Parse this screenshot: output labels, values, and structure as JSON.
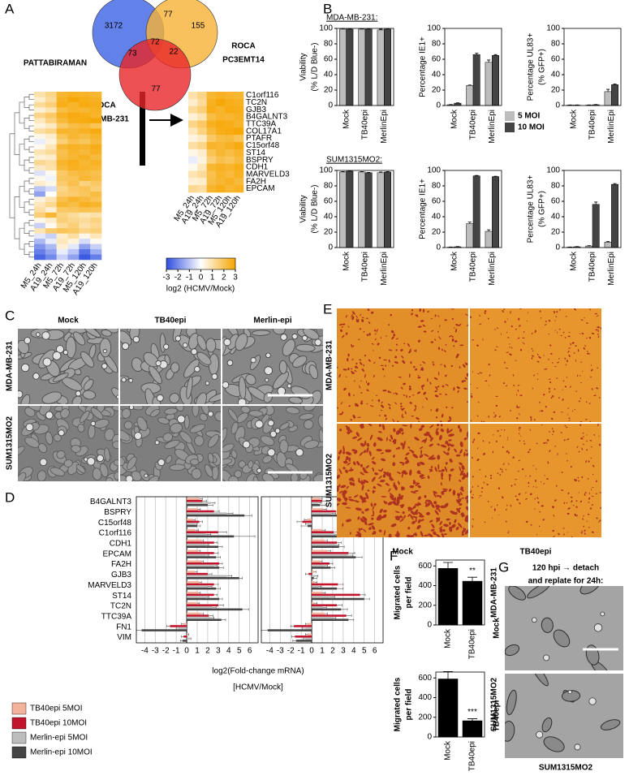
{
  "panel_labels": [
    "A",
    "B",
    "C",
    "D",
    "E",
    "F",
    "G"
  ],
  "venn": {
    "sets": [
      {
        "name": "PATTABIRAMAN",
        "color": "#3b62e3"
      },
      {
        "name": [
          "ROCA",
          "PC3EMT14"
        ],
        "color": "#f7b236"
      },
      {
        "name": [
          "ROCA",
          "MDA-MB-231"
        ],
        "color": "#e92628"
      }
    ],
    "counts": [
      3172,
      77,
      155,
      72,
      73,
      22,
      77
    ]
  },
  "heatmap": {
    "columns": [
      "M5_24h",
      "A19_24h",
      "M5_72h",
      "A19_72h",
      "M5_120h",
      "A19_120h"
    ],
    "genes": [
      "C1orf116",
      "TC2N",
      "GJB3",
      "B4GALNT3",
      "TTC39A",
      "COL17A1",
      "PTAFR",
      "C15orf48",
      "ST14",
      "BSPRY",
      "CDH1",
      "MARVELD3",
      "FA2H",
      "EPCAM"
    ],
    "values": [
      [
        1.0,
        1.4,
        2.4,
        2.6,
        2.5,
        2.4
      ],
      [
        0.6,
        1.2,
        2.6,
        2.9,
        2.7,
        2.6
      ],
      [
        1.2,
        1.6,
        2.7,
        2.5,
        2.8,
        2.7
      ],
      [
        0.5,
        0.9,
        2.2,
        2.5,
        2.4,
        2.6
      ],
      [
        1.4,
        1.8,
        2.6,
        2.8,
        2.7,
        2.5
      ],
      [
        0.8,
        1.5,
        2.3,
        2.7,
        2.8,
        2.9
      ],
      [
        0.4,
        0.7,
        1.8,
        2.2,
        2.3,
        2.0
      ],
      [
        1.1,
        1.4,
        2.5,
        2.4,
        2.6,
        2.8
      ],
      [
        0.3,
        0.6,
        2.0,
        2.4,
        2.2,
        2.5
      ],
      [
        -0.3,
        0.4,
        1.6,
        2.1,
        1.9,
        2.3
      ],
      [
        0.2,
        0.8,
        2.4,
        2.6,
        2.5,
        2.7
      ],
      [
        0.9,
        1.2,
        2.1,
        2.5,
        2.3,
        2.6
      ],
      [
        0.5,
        0.6,
        2.2,
        2.4,
        2.6,
        2.3
      ],
      [
        1.3,
        1.1,
        2.5,
        2.7,
        2.4,
        2.6
      ],
      [
        0.7,
        1.0,
        2.3,
        2.6,
        2.5,
        2.4
      ],
      [
        -0.5,
        0.2,
        1.8,
        2.2,
        2.3,
        2.1
      ],
      [
        0.2,
        -0.2,
        1.9,
        2.0,
        2.4,
        2.2
      ],
      [
        0.6,
        0.3,
        1.7,
        2.1,
        1.5,
        1.8
      ],
      [
        -1.0,
        -0.6,
        1.4,
        1.8,
        2.0,
        1.6
      ],
      [
        -1.6,
        0.0,
        1.6,
        1.7,
        1.9,
        2.2
      ],
      [
        0.4,
        0.9,
        2.1,
        2.5,
        2.3,
        2.0
      ],
      [
        0.8,
        1.3,
        2.4,
        2.2,
        2.6,
        2.5
      ],
      [
        1.1,
        0.5,
        1.8,
        1.9,
        2.1,
        2.0
      ],
      [
        1.6,
        2.4,
        1.5,
        1.2,
        0.9,
        1.0
      ],
      [
        0.3,
        0.6,
        1.6,
        1.4,
        1.2,
        1.5
      ],
      [
        -0.8,
        0.2,
        1.2,
        1.6,
        1.0,
        1.3
      ],
      [
        0.9,
        1.7,
        2.0,
        1.8,
        1.4,
        1.6
      ],
      [
        -0.4,
        -0.8,
        0.6,
        1.1,
        0.3,
        0.8
      ],
      [
        -1.2,
        -0.3,
        0.8,
        0.4,
        -0.6,
        0.2
      ],
      [
        -1.8,
        -1.2,
        0.5,
        -0.4,
        -1.6,
        -0.8
      ],
      [
        -2.2,
        -1.6,
        -0.3,
        -1.0,
        -2.4,
        -1.4
      ],
      [
        -2.6,
        -2.0,
        -0.8,
        -1.6,
        -2.8,
        -2.2
      ]
    ],
    "colorbar": {
      "lim": [
        -3,
        3
      ],
      "ticks": [
        -3,
        -2,
        -1,
        0,
        1,
        2,
        3
      ],
      "label": "log2 (HCMV/Mock)",
      "colors": [
        "#2f4fe0",
        "#ffffff",
        "#f6a500"
      ]
    }
  },
  "panel_b": {
    "row_labels": [
      "MDA-MB-231:",
      "SUM1315MO2:"
    ]
  },
  "chart_data": [
    {
      "type": "bar",
      "ylabel": [
        "Viability",
        "(% L/D Blue-)"
      ],
      "categories": [
        "Mock",
        "TB40epi",
        "MerlinEpi"
      ],
      "ylim": [
        0,
        100
      ],
      "yticks": [
        0,
        20,
        40,
        60,
        80,
        100
      ],
      "series": [
        {
          "name": "5 MOI",
          "color": "#bdbdbd",
          "values": [
            99,
            99,
            98
          ],
          "errors": [
            1,
            0.5,
            1
          ]
        },
        {
          "name": "10 MOI",
          "color": "#444444",
          "values": [
            99,
            99,
            99
          ],
          "errors": [
            0.5,
            0.5,
            0.5
          ]
        }
      ]
    },
    {
      "type": "bar",
      "ylabel": [
        "Percentage IE1+"
      ],
      "categories": [
        "Mock",
        "TB40epi",
        "MerlinEpi"
      ],
      "ylim": [
        0,
        100
      ],
      "yticks": [
        0,
        20,
        40,
        60,
        80,
        100
      ],
      "series": [
        {
          "name": "5 MOI",
          "color": "#bdbdbd",
          "values": [
            1,
            26,
            56
          ],
          "errors": [
            0.3,
            0.5,
            3
          ]
        },
        {
          "name": "10 MOI",
          "color": "#444444",
          "values": [
            3,
            66,
            65
          ],
          "errors": [
            0.5,
            2,
            1
          ]
        }
      ]
    },
    {
      "type": "bar",
      "ylabel": [
        "Percentage UL83+",
        "(% GFP+)"
      ],
      "categories": [
        "Mock",
        "TB40epi",
        "MerlinEpi"
      ],
      "ylim": [
        0,
        100
      ],
      "yticks": [
        0,
        20,
        40,
        60,
        80,
        100
      ],
      "series": [
        {
          "name": "5 MOI",
          "color": "#bdbdbd",
          "values": [
            0.5,
            0.5,
            18
          ],
          "errors": [
            0.2,
            0.2,
            3
          ]
        },
        {
          "name": "10 MOI",
          "color": "#444444",
          "values": [
            0.5,
            1,
            27
          ],
          "errors": [
            0.2,
            0.3,
            1
          ]
        }
      ]
    },
    {
      "type": "bar",
      "ylabel": [
        "Viability",
        "(% L/D Blue-)"
      ],
      "categories": [
        "Mock",
        "TB40epi",
        "MerlinEpi"
      ],
      "ylim": [
        0,
        100
      ],
      "yticks": [
        0,
        20,
        40,
        60,
        80,
        100
      ],
      "series": [
        {
          "name": "5 MOI",
          "color": "#bdbdbd",
          "values": [
            98,
            98,
            97
          ],
          "errors": [
            0.5,
            0.5,
            1
          ]
        },
        {
          "name": "10 MOI",
          "color": "#444444",
          "values": [
            99,
            97,
            98
          ],
          "errors": [
            0.5,
            0.5,
            0.5
          ]
        }
      ]
    },
    {
      "type": "bar",
      "ylabel": [
        "Percentage IE1+"
      ],
      "categories": [
        "Mock",
        "TB40epi",
        "MerlinEpi"
      ],
      "ylim": [
        0,
        100
      ],
      "yticks": [
        0,
        20,
        40,
        60,
        80,
        100
      ],
      "series": [
        {
          "name": "5 MOI",
          "color": "#bdbdbd",
          "values": [
            0.5,
            31,
            21
          ],
          "errors": [
            0.2,
            2,
            2
          ]
        },
        {
          "name": "10 MOI",
          "color": "#444444",
          "values": [
            1,
            93,
            92
          ],
          "errors": [
            0.3,
            0.5,
            0.5
          ]
        }
      ]
    },
    {
      "type": "bar",
      "ylabel": [
        "Percentage UL83+",
        "(% GFP+)"
      ],
      "categories": [
        "Mock",
        "TB40epi",
        "MerlinEpi"
      ],
      "ylim": [
        0,
        100
      ],
      "yticks": [
        0,
        20,
        40,
        60,
        80,
        100
      ],
      "series": [
        {
          "name": "5 MOI",
          "color": "#bdbdbd",
          "values": [
            0.5,
            2,
            7
          ],
          "errors": [
            0.2,
            0.5,
            1
          ]
        },
        {
          "name": "10 MOI",
          "color": "#444444",
          "values": [
            1,
            56,
            82
          ],
          "errors": [
            0.3,
            3,
            1
          ]
        }
      ]
    },
    {
      "type": "bar",
      "orientation": "horizontal",
      "grid": true,
      "xlim": [
        -4.8,
        6.8
      ],
      "xticks": [
        -4,
        -3,
        -2,
        -1,
        0,
        1,
        2,
        3,
        4,
        5,
        6
      ],
      "xlabel": [
        "log2(Fold-change mRNA)",
        "[HCMV/Mock]"
      ],
      "categories": [
        "B4GALNT3",
        "BSPRY",
        "C15orf48",
        "C1orf116",
        "CDH1",
        "EPCAM",
        "FA2H",
        "GJB3",
        "MARVELD3",
        "ST14",
        "TC2N",
        "TTC39A",
        "FN1",
        "VIM"
      ],
      "series": [
        {
          "name": "TB40epi 5MOI",
          "color": "#f2b29c",
          "values": [
            1.2,
            1.0,
            0.6,
            0.8,
            1.4,
            1.1,
            1.4,
            0.8,
            1.2,
            1.1,
            1.0,
            1.3,
            -0.3,
            0.1
          ],
          "errors": [
            0.3,
            0.3,
            0.2,
            0.3,
            0.2,
            0.2,
            0.2,
            0.2,
            0.2,
            0.2,
            0.2,
            0.3,
            0.2,
            0.1
          ]
        },
        {
          "name": "TB40epi 10MOI",
          "color": "#c2142c",
          "values": [
            1.5,
            2.6,
            1.2,
            3.0,
            2.6,
            2.6,
            3.1,
            2.0,
            2.6,
            2.6,
            3.0,
            2.1,
            -1.6,
            -0.3
          ],
          "errors": [
            0.4,
            0.5,
            0.3,
            0.8,
            0.3,
            0.4,
            0.3,
            0.4,
            0.4,
            0.3,
            0.5,
            0.4,
            0.3,
            0.2
          ]
        },
        {
          "name": "Merlin-epi 5MOI",
          "color": "#bdbdbd",
          "values": [
            2.3,
            3.8,
            0.8,
            1.8,
            1.8,
            1.8,
            2.6,
            3.8,
            2.0,
            1.8,
            2.4,
            2.2,
            -0.8,
            0.3
          ],
          "errors": [
            0.4,
            0.6,
            0.2,
            0.5,
            0.3,
            0.3,
            0.3,
            0.5,
            0.4,
            0.3,
            0.4,
            0.4,
            0.2,
            0.1
          ]
        },
        {
          "name": "Merlin-epi 10MOI",
          "color": "#444444",
          "values": [
            2.0,
            5.5,
            1.0,
            4.5,
            3.0,
            2.8,
            3.1,
            5.0,
            2.8,
            3.1,
            5.3,
            3.3,
            -4.3,
            -0.4
          ],
          "errors": [
            0.5,
            0.7,
            0.3,
            2.0,
            0.4,
            0.4,
            0.4,
            0.3,
            0.4,
            0.3,
            0.6,
            0.4,
            0.5,
            0.2
          ]
        }
      ]
    },
    {
      "type": "bar",
      "orientation": "horizontal",
      "grid": true,
      "xlim": [
        -4.8,
        6.8
      ],
      "xticks": [
        -4,
        -3,
        -2,
        -1,
        0,
        1,
        2,
        3,
        4,
        5,
        6
      ],
      "series": [
        {
          "color": "#f2b29c",
          "values": [
            0.8,
            1.0,
            -0.4,
            1.0,
            1.2,
            1.5,
            0.8,
            0.2,
            0.3,
            1.0,
            0.2,
            1.2,
            -0.4,
            -0.4
          ],
          "errors": [
            0.2,
            0.4,
            0.3,
            0.3,
            0.3,
            0.3,
            0.2,
            0.2,
            0.2,
            0.3,
            0.3,
            0.3,
            0.2,
            0.2
          ]
        },
        {
          "color": "#c2142c",
          "values": [
            1.0,
            2.3,
            -0.9,
            2.1,
            2.4,
            3.5,
            1.7,
            -0.3,
            2.5,
            4.6,
            2.4,
            3.3,
            -1.7,
            -1.6
          ],
          "errors": [
            0.4,
            0.8,
            0.5,
            0.5,
            0.4,
            0.6,
            0.3,
            0.3,
            0.5,
            0.5,
            0.5,
            0.5,
            0.3,
            0.3
          ]
        },
        {
          "color": "#bdbdbd",
          "values": [
            0.6,
            1.8,
            -0.2,
            2.3,
            2.2,
            3.4,
            1.2,
            0.3,
            0.6,
            1.8,
            1.0,
            1.9,
            -0.6,
            -0.6
          ],
          "errors": [
            0.3,
            0.5,
            0.4,
            0.4,
            0.4,
            0.5,
            0.3,
            0.3,
            0.3,
            0.4,
            0.4,
            0.4,
            0.3,
            0.2
          ]
        },
        {
          "color": "#444444",
          "values": [
            0.8,
            2.4,
            -0.4,
            2.8,
            2.6,
            4.2,
            1.8,
            0.2,
            2.4,
            5.0,
            2.8,
            3.5,
            -4.2,
            -1.5
          ],
          "errors": [
            0.5,
            1.0,
            0.6,
            0.6,
            0.5,
            0.6,
            0.4,
            0.3,
            0.6,
            0.5,
            0.6,
            0.5,
            0.6,
            0.3
          ]
        }
      ]
    },
    {
      "type": "bar",
      "ylabel": [
        "Migrated cells",
        "per field"
      ],
      "side_label": "MDA-MB-231",
      "categories": [
        "Mock",
        "TB40epi"
      ],
      "ylim": [
        0,
        660
      ],
      "yticks": [
        0,
        200,
        400,
        600
      ],
      "annotations": [
        {
          "category": "TB40epi",
          "text": "**"
        }
      ],
      "series": [
        {
          "color": "#000000",
          "values": [
            575,
            445
          ],
          "errors": [
            60,
            40
          ]
        }
      ]
    },
    {
      "type": "bar",
      "ylabel": [
        "Migrated cells",
        "per field"
      ],
      "side_label": "SUM1315MO2",
      "categories": [
        "Mock",
        "TB40epi"
      ],
      "ylim": [
        0,
        660
      ],
      "yticks": [
        0,
        200,
        400,
        600
      ],
      "annotations": [
        {
          "category": "TB40epi",
          "text": "***"
        }
      ],
      "series": [
        {
          "color": "#000000",
          "values": [
            590,
            165
          ],
          "errors": [
            75,
            20
          ]
        }
      ]
    }
  ],
  "panel_c": {
    "columns": [
      "Mock",
      "TB40epi",
      "Merlin-epi"
    ],
    "rows": [
      "MDA-MB-231",
      "SUM1315MO2"
    ]
  },
  "panel_e": {
    "columns": [
      "Mock",
      "TB40epi"
    ],
    "rows": [
      "MDA-MB-231",
      "SUM1315MO2"
    ]
  },
  "panel_g": {
    "title": [
      "120 hpi → detach",
      "and replate for 24h:"
    ],
    "rows": [
      "Mock",
      "TB40epi"
    ],
    "caption": "SUM1315MO2"
  }
}
